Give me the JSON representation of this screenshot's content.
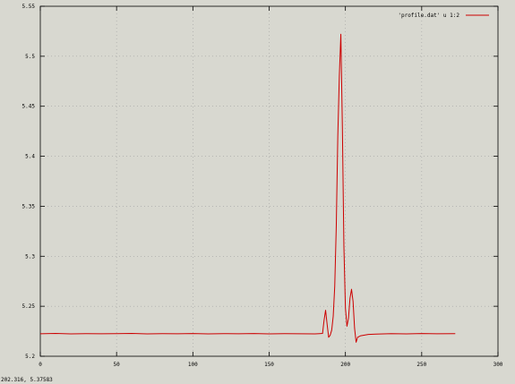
{
  "window": {
    "background": "#d8d8d0"
  },
  "status_bar": {
    "coords": "202.316,  5.37583"
  },
  "chart_data": {
    "type": "line",
    "title": "",
    "xlabel": "",
    "ylabel": "",
    "xlim": [
      0,
      300
    ],
    "ylim": [
      5.2,
      5.55
    ],
    "x_ticks": [
      0,
      50,
      100,
      150,
      200,
      250,
      300
    ],
    "x_tick_labels": [
      "0",
      "50",
      "100",
      "150",
      "200",
      "250",
      "300"
    ],
    "y_ticks": [
      5.2,
      5.25,
      5.3,
      5.35,
      5.4,
      5.45,
      5.5,
      5.55
    ],
    "y_tick_labels": [
      "5.2",
      "5.25",
      "5.3",
      "5.35",
      "5.4",
      "5.45",
      "5.5",
      "5.55"
    ],
    "grid": true,
    "legend_position": "top-right",
    "series": [
      {
        "name": "'profile.dat' u 1:2",
        "color": "#cc0000",
        "x": [
          0,
          10,
          20,
          30,
          40,
          50,
          60,
          70,
          80,
          90,
          100,
          110,
          120,
          130,
          140,
          150,
          160,
          170,
          180,
          183,
          185,
          186,
          187,
          188,
          189,
          190,
          191,
          192,
          193,
          194,
          195,
          196,
          197,
          198,
          199,
          200,
          201,
          202,
          203,
          204,
          205,
          206,
          207,
          208,
          210,
          215,
          220,
          230,
          240,
          250,
          260,
          272
        ],
        "y": [
          5.2225,
          5.2228,
          5.2224,
          5.2226,
          5.2225,
          5.2226,
          5.2228,
          5.2224,
          5.2226,
          5.2225,
          5.2227,
          5.2224,
          5.2226,
          5.2225,
          5.2227,
          5.2224,
          5.2226,
          5.2225,
          5.2224,
          5.2226,
          5.2228,
          5.236,
          5.246,
          5.232,
          5.219,
          5.221,
          5.226,
          5.24,
          5.27,
          5.33,
          5.42,
          5.48,
          5.522,
          5.43,
          5.31,
          5.248,
          5.23,
          5.238,
          5.258,
          5.267,
          5.255,
          5.228,
          5.214,
          5.219,
          5.2205,
          5.2218,
          5.2222,
          5.2226,
          5.2224,
          5.2227,
          5.2225,
          5.2226
        ]
      }
    ]
  }
}
